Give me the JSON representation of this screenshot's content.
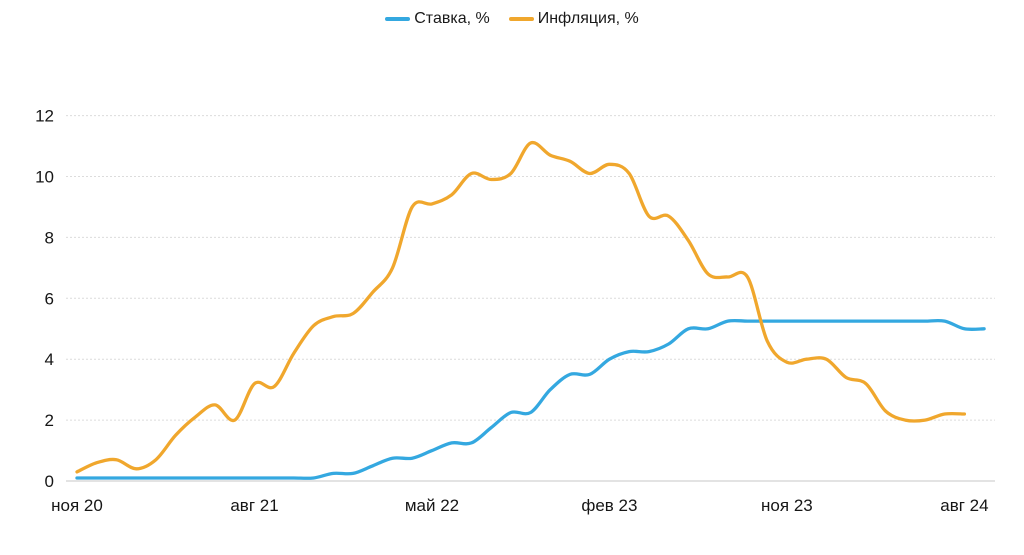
{
  "legend": {
    "items": [
      {
        "label": "Ставка, %"
      },
      {
        "label": "Инфляция, %"
      }
    ]
  },
  "chart_data": {
    "type": "line",
    "title": "",
    "xlabel": "",
    "ylabel": "",
    "ylim": [
      0,
      12
    ],
    "y_ticks": [
      0,
      2,
      4,
      6,
      8,
      10,
      12
    ],
    "grid": "horizontal-dashed",
    "legend_position": "top-center",
    "x_start_month": "ноя 20",
    "x_ticks": [
      {
        "label": "ноя 20",
        "month": 0
      },
      {
        "label": "авг 21",
        "month": 9
      },
      {
        "label": "май 22",
        "month": 18
      },
      {
        "label": "фев 23",
        "month": 27
      },
      {
        "label": "ноя 23",
        "month": 36
      },
      {
        "label": "авг 24",
        "month": 45
      }
    ],
    "series": [
      {
        "name": "Ставка, %",
        "color": "#34A8E0",
        "values": [
          0.1,
          0.1,
          0.1,
          0.1,
          0.1,
          0.1,
          0.1,
          0.1,
          0.1,
          0.1,
          0.1,
          0.1,
          0.1,
          0.25,
          0.25,
          0.5,
          0.75,
          0.75,
          1.0,
          1.25,
          1.25,
          1.75,
          2.25,
          2.25,
          3.0,
          3.5,
          3.5,
          4.0,
          4.25,
          4.25,
          4.5,
          5.0,
          5.0,
          5.25,
          5.25,
          5.25,
          5.25,
          5.25,
          5.25,
          5.25,
          5.25,
          5.25,
          5.25,
          5.25,
          5.25,
          5.0,
          5.0
        ]
      },
      {
        "name": "Инфляция, %",
        "color": "#F0A72D",
        "values": [
          0.3,
          0.6,
          0.7,
          0.4,
          0.7,
          1.5,
          2.1,
          2.5,
          2.0,
          3.2,
          3.1,
          4.2,
          5.1,
          5.4,
          5.5,
          6.2,
          7.0,
          9.0,
          9.1,
          9.4,
          10.1,
          9.9,
          10.1,
          11.1,
          10.7,
          10.5,
          10.1,
          10.4,
          10.1,
          8.7,
          8.7,
          7.9,
          6.8,
          6.7,
          6.7,
          4.6,
          3.9,
          4.0,
          4.0,
          3.4,
          3.2,
          2.3,
          2.0,
          2.0,
          2.2,
          2.2
        ]
      }
    ],
    "colors": {
      "gridline": "#dcdcdc",
      "zero_axis": "#c7c7c7",
      "tick_text": "#161616"
    }
  }
}
